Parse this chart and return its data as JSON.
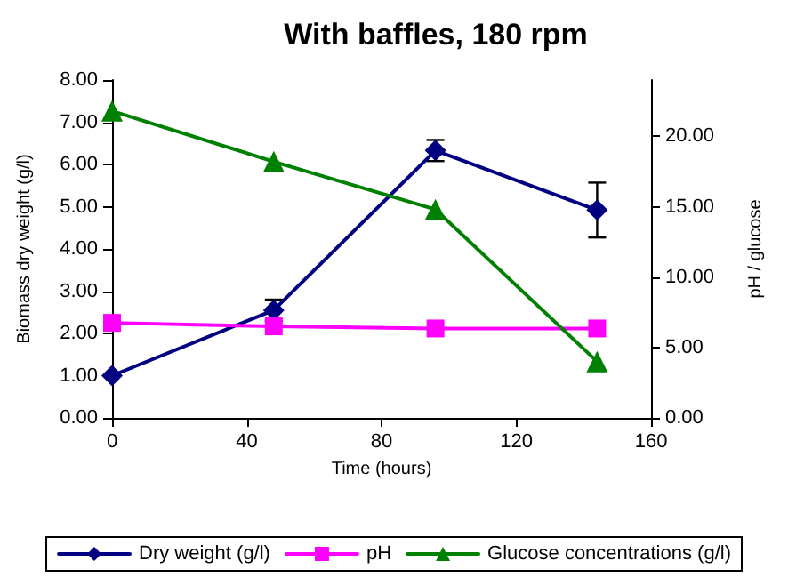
{
  "chart_data": {
    "type": "line",
    "title": "With baffles, 180 rpm",
    "xlabel": "Time (hours)",
    "ylabel": "Biomass dry weight (g/l)",
    "y2label": "pH / glucose",
    "x": [
      0,
      48,
      96,
      144
    ],
    "series": [
      {
        "name": "Dry weight (g/l)",
        "color": "#000080",
        "values": [
          1.0,
          2.55,
          6.33,
          4.92
        ],
        "errors": [
          null,
          0.25,
          0.25,
          0.65
        ],
        "marker": "diamond"
      },
      {
        "name": "pH",
        "color": "#ff00ff",
        "values": [
          6.75,
          6.5,
          6.35,
          6.35
        ],
        "axis": "y2",
        "marker": "square"
      },
      {
        "name": "Glucose concentrations (g/l)",
        "color": "#008000",
        "values": [
          21.8,
          18.2,
          14.8,
          4.0
        ],
        "axis": "y2",
        "marker": "triangle"
      }
    ],
    "xlim": [
      0,
      160
    ],
    "xticks": [
      0,
      40,
      80,
      120,
      160
    ],
    "ylim": [
      0,
      8
    ],
    "yticks": [
      {
        "value": 0,
        "label": "0.00"
      },
      {
        "value": 1,
        "label": "1.00"
      },
      {
        "value": 2,
        "label": "2.00"
      },
      {
        "value": 3,
        "label": "3.00"
      },
      {
        "value": 4,
        "label": "4.00"
      },
      {
        "value": 5,
        "label": "5.00"
      },
      {
        "value": 6,
        "label": "6.00"
      },
      {
        "value": 7,
        "label": "7.00"
      },
      {
        "value": 8,
        "label": "8.00"
      }
    ],
    "y2lim": [
      0,
      24
    ],
    "y2ticks": [
      {
        "value": 0,
        "label": "0.00"
      },
      {
        "value": 5,
        "label": "5.00"
      },
      {
        "value": 10,
        "label": "10.00"
      },
      {
        "value": 15,
        "label": "15.00"
      },
      {
        "value": 20,
        "label": "20.00"
      }
    ],
    "grid": false,
    "legend": "bottom",
    "line_style": "solid"
  }
}
